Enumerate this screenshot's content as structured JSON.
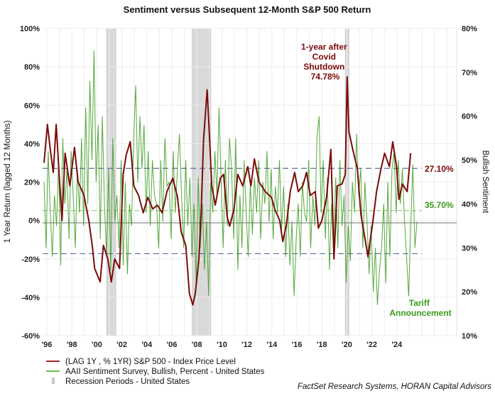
{
  "chart_data": {
    "type": "line",
    "title": "Sentiment versus Subsequent 12-Month S&P 500 Return",
    "ylabel": "1 Year Return (lagged 12 Months)",
    "y2label": "Bullish Sentiment",
    "ylim": [
      -60,
      100
    ],
    "y2lim": [
      10,
      80
    ],
    "yticks": [
      "-60%",
      "-40%",
      "-20%",
      "0%",
      "20%",
      "40%",
      "60%",
      "80%",
      "100%"
    ],
    "y2ticks": [
      "10%",
      "20%",
      "30%",
      "40%",
      "50%",
      "60%",
      "70%",
      "80%"
    ],
    "xticks": [
      "'96",
      "'98",
      "'00",
      "'02",
      "'04",
      "'06",
      "'08",
      "'10",
      "'12",
      "'14",
      "'16",
      "'18",
      "'20",
      "'22",
      "'24"
    ],
    "grid": true,
    "legend_placement": "bottom-left",
    "colors": {
      "sp500": "#7b0a0a",
      "sentiment": "#3a9a1c",
      "recession": "#d9d9d9",
      "reference": "#5b6f95",
      "zero": "#8c8c8c"
    },
    "recessions": [
      [
        2001.0,
        2001.75
      ],
      [
        2007.85,
        2009.35
      ],
      [
        2020.1,
        2020.4
      ]
    ],
    "reference_lines": {
      "upper_return": 27.1,
      "lower_return": -17.3,
      "sentiment_dashed": 38.5,
      "sentiment_solid": 35.7
    },
    "series": [
      {
        "name": "(LAG 1Y , % 1YR) S&P 500 - Index Price Level",
        "axis": "left",
        "points": [
          [
            1996.0,
            30
          ],
          [
            1996.27,
            50
          ],
          [
            1996.5,
            37
          ],
          [
            1996.74,
            25
          ],
          [
            1996.97,
            50
          ],
          [
            1997.2,
            25
          ],
          [
            1997.44,
            0
          ],
          [
            1997.69,
            35
          ],
          [
            1998.06,
            18
          ],
          [
            1998.44,
            38
          ],
          [
            1998.73,
            20
          ],
          [
            1999.2,
            13
          ],
          [
            1999.58,
            0
          ],
          [
            1999.86,
            -13
          ],
          [
            2000.05,
            -25
          ],
          [
            2000.49,
            -32
          ],
          [
            2000.75,
            -13
          ],
          [
            2001.1,
            -20
          ],
          [
            2001.38,
            -32
          ],
          [
            2001.66,
            -20
          ],
          [
            2002.04,
            -25
          ],
          [
            2002.33,
            24
          ],
          [
            2002.57,
            34
          ],
          [
            2002.9,
            41
          ],
          [
            2003.18,
            18
          ],
          [
            2003.56,
            13
          ],
          [
            2003.94,
            4
          ],
          [
            2004.3,
            12
          ],
          [
            2004.7,
            6
          ],
          [
            2005.07,
            8
          ],
          [
            2005.45,
            4
          ],
          [
            2005.83,
            15
          ],
          [
            2006.3,
            22
          ],
          [
            2006.68,
            12
          ],
          [
            2006.97,
            -6
          ],
          [
            2007.34,
            -13
          ],
          [
            2007.63,
            -38
          ],
          [
            2007.9,
            -44
          ],
          [
            2008.1,
            -38
          ],
          [
            2008.39,
            -20
          ],
          [
            2008.58,
            6
          ],
          [
            2008.76,
            42
          ],
          [
            2009.05,
            68
          ],
          [
            2009.23,
            45
          ],
          [
            2009.42,
            18
          ],
          [
            2009.7,
            8
          ],
          [
            2010.1,
            22
          ],
          [
            2010.37,
            24
          ],
          [
            2010.65,
            2
          ],
          [
            2010.85,
            -3
          ],
          [
            2011.2,
            6
          ],
          [
            2011.5,
            24
          ],
          [
            2011.9,
            18
          ],
          [
            2012.3,
            28
          ],
          [
            2012.55,
            18
          ],
          [
            2012.83,
            32
          ],
          [
            2013.2,
            20
          ],
          [
            2013.7,
            15
          ],
          [
            2014.2,
            12
          ],
          [
            2014.45,
            6
          ],
          [
            2014.85,
            0
          ],
          [
            2015.1,
            -11
          ],
          [
            2015.4,
            -2
          ],
          [
            2015.7,
            15
          ],
          [
            2016.05,
            25
          ],
          [
            2016.34,
            15
          ],
          [
            2016.7,
            18
          ],
          [
            2017.0,
            25
          ],
          [
            2017.3,
            13
          ],
          [
            2017.7,
            15
          ],
          [
            2017.95,
            -4
          ],
          [
            2018.23,
            0
          ],
          [
            2018.6,
            12
          ],
          [
            2018.95,
            37
          ],
          [
            2019.2,
            -20
          ],
          [
            2019.46,
            18
          ],
          [
            2019.84,
            19
          ],
          [
            2020.1,
            24
          ],
          [
            2020.25,
            74.78
          ],
          [
            2020.4,
            46
          ],
          [
            2020.7,
            37
          ],
          [
            2021.07,
            27
          ],
          [
            2021.35,
            3
          ],
          [
            2021.64,
            -8
          ],
          [
            2021.92,
            -19
          ],
          [
            2022.1,
            -10
          ],
          [
            2022.3,
            -1
          ],
          [
            2022.6,
            15
          ],
          [
            2022.96,
            27
          ],
          [
            2023.25,
            35
          ],
          [
            2023.63,
            28
          ],
          [
            2023.9,
            41
          ],
          [
            2024.2,
            28
          ],
          [
            2024.4,
            11
          ],
          [
            2024.67,
            19
          ],
          [
            2025.05,
            15
          ],
          [
            2025.33,
            35
          ]
        ]
      },
      {
        "name": "AAII Sentiment Survey, Bullish, Percent - United States",
        "axis": "right",
        "start": 1996.0,
        "step_years": 0.1667,
        "values": [
          45,
          30,
          52,
          38,
          28,
          42,
          35,
          50,
          26,
          55,
          40,
          48,
          32,
          52,
          42,
          30,
          48,
          38,
          55,
          35,
          62,
          40,
          68,
          50,
          75,
          45,
          58,
          32,
          60,
          40,
          28,
          48,
          25,
          55,
          36,
          42,
          30,
          50,
          26,
          45,
          24,
          40,
          35,
          55,
          67,
          45,
          60,
          48,
          58,
          38,
          52,
          35,
          50,
          42,
          40,
          30,
          50,
          36,
          55,
          44,
          45,
          32,
          52,
          38,
          48,
          56,
          42,
          30,
          50,
          35,
          46,
          28,
          40,
          22,
          46,
          30,
          40,
          25,
          36,
          19,
          45,
          38,
          52,
          42,
          62,
          45,
          30,
          50,
          35,
          55,
          48,
          32,
          55,
          25,
          42,
          30,
          50,
          38,
          28,
          45,
          33,
          46,
          38,
          50,
          32,
          45,
          40,
          52,
          36,
          48,
          32,
          44,
          38,
          50,
          34,
          44,
          28,
          40,
          26,
          36,
          19,
          32,
          40,
          28,
          45,
          38,
          36,
          50,
          30,
          42,
          35,
          55,
          60,
          38,
          50,
          32,
          46,
          25,
          40,
          28,
          46,
          30,
          50,
          35,
          42,
          22,
          35,
          27,
          45,
          38,
          56,
          42,
          48,
          30,
          45,
          36,
          24,
          35,
          20,
          30,
          17,
          25,
          30,
          40,
          22,
          45,
          28,
          48,
          52,
          38,
          50,
          40,
          48,
          36,
          28,
          19,
          35,
          49,
          30,
          36
        ]
      },
      {
        "name": "Recession Periods - United States",
        "type": "bands"
      }
    ],
    "annotations": {
      "covid": [
        "1-year after",
        "Covid",
        "Shutdown",
        "74.78%"
      ],
      "upper_label": "27.10%",
      "sentiment_label": "35.70%",
      "tariff": [
        "Tariff",
        "Announcement"
      ]
    }
  },
  "source": "FactSet Research Systems, HORAN Capital Advisors"
}
